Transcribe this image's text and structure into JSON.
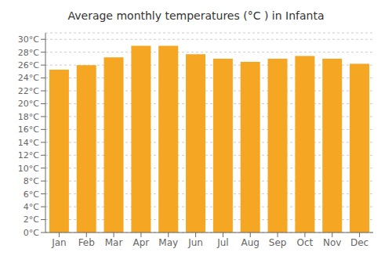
{
  "chart_data": {
    "type": "bar",
    "title": "Average monthly temperatures (°C ) in Infanta",
    "categories": [
      "Jan",
      "Feb",
      "Mar",
      "Apr",
      "May",
      "Jun",
      "Jul",
      "Aug",
      "Sep",
      "Oct",
      "Nov",
      "Dec"
    ],
    "values": [
      25.3,
      26.0,
      27.2,
      29.0,
      29.0,
      27.7,
      27.0,
      26.5,
      27.0,
      27.4,
      27.0,
      26.2
    ],
    "color": "#F5A623",
    "ylim": [
      0,
      31
    ],
    "yticks": [
      {
        "value": 0,
        "label": "0°C"
      },
      {
        "value": 2,
        "label": "2°C"
      },
      {
        "value": 4,
        "label": "4°C"
      },
      {
        "value": 6,
        "label": "6°C"
      },
      {
        "value": 8,
        "label": "8°C"
      },
      {
        "value": 10,
        "label": "10°C"
      },
      {
        "value": 12,
        "label": "12°C"
      },
      {
        "value": 14,
        "label": "14°C"
      },
      {
        "value": 16,
        "label": "16°C"
      },
      {
        "value": 18,
        "label": "18°C"
      },
      {
        "value": 20,
        "label": "20°C"
      },
      {
        "value": 22,
        "label": "22°C"
      },
      {
        "value": 24,
        "label": "24°C"
      },
      {
        "value": 26,
        "label": "26°C"
      },
      {
        "value": 28,
        "label": "28°C"
      },
      {
        "value": 30,
        "label": "30°C"
      }
    ],
    "grid": true
  }
}
